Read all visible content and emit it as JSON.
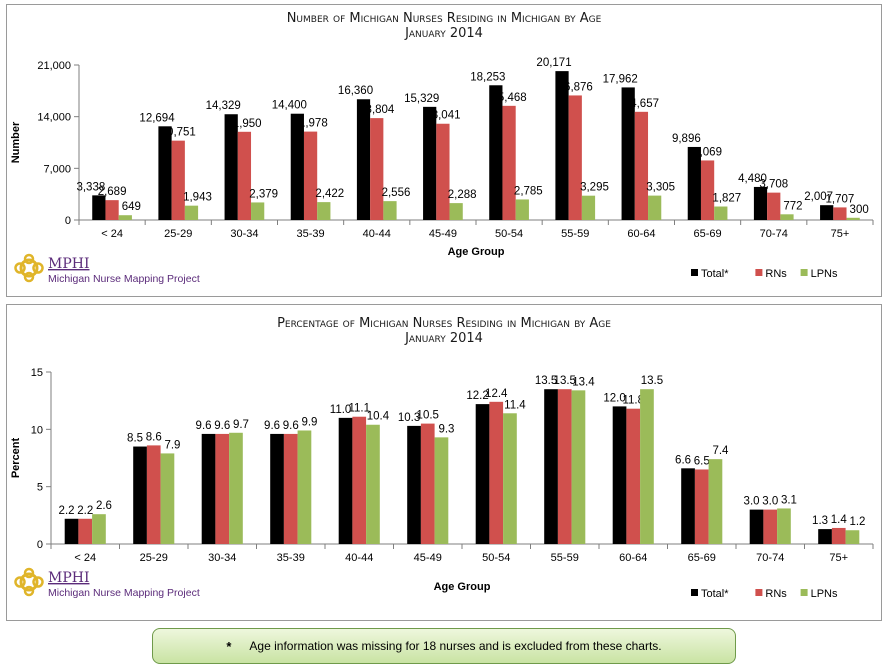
{
  "chart_data": [
    {
      "type": "bar",
      "title": "Number of Michigan Nurses Residing in Michigan by Age",
      "subtitle": "January 2014",
      "xlabel": "Age Group",
      "ylabel": "Number",
      "ylim": [
        0,
        21000
      ],
      "yticks": [
        "0",
        "7,000",
        "14,000",
        "21,000"
      ],
      "ytick_values": [
        0,
        7000,
        14000,
        21000
      ],
      "categories": [
        "< 24",
        "25-29",
        "30-34",
        "35-39",
        "40-44",
        "45-49",
        "50-54",
        "55-59",
        "60-64",
        "65-69",
        "70-74",
        "75+"
      ],
      "series": [
        {
          "name": "Total*",
          "color": "#000000",
          "values": [
            3338,
            12694,
            14329,
            14400,
            16360,
            15329,
            18253,
            20171,
            17962,
            9896,
            4480,
            2007
          ],
          "labels": [
            "3,338",
            "12,694",
            "14,329",
            "14,400",
            "16,360",
            "15,329",
            "18,253",
            "20,171",
            "17,962",
            "9,896",
            "4,480",
            "2,007"
          ]
        },
        {
          "name": "RNs",
          "color": "#d0504d",
          "values": [
            2689,
            10751,
            11950,
            11978,
            13804,
            13041,
            15468,
            16876,
            14657,
            8069,
            3708,
            1707
          ],
          "labels": [
            "2,689",
            "10,751",
            "11,950",
            "11,978",
            "13,804",
            "13,041",
            "15,468",
            "16,876",
            "14,657",
            "8,069",
            "3,708",
            "1,707"
          ]
        },
        {
          "name": "LPNs",
          "color": "#9bbb59",
          "values": [
            649,
            1943,
            2379,
            2422,
            2556,
            2288,
            2785,
            3295,
            3305,
            1827,
            772,
            300
          ],
          "labels": [
            "649",
            "1,943",
            "2,379",
            "2,422",
            "2,556",
            "2,288",
            "2,785",
            "3,295",
            "3,305",
            "1,827",
            "772",
            "300"
          ]
        }
      ],
      "grid": false,
      "legend_position": "bottom-right"
    },
    {
      "type": "bar",
      "title": "Percentage of Michigan Nurses Residing in Michigan by Age",
      "subtitle": "January 2014",
      "xlabel": "Age Group",
      "ylabel": "Percent",
      "ylim": [
        0,
        15
      ],
      "yticks": [
        "0",
        "5",
        "10",
        "15"
      ],
      "ytick_values": [
        0,
        5,
        10,
        15
      ],
      "categories": [
        "< 24",
        "25-29",
        "30-34",
        "35-39",
        "40-44",
        "45-49",
        "50-54",
        "55-59",
        "60-64",
        "65-69",
        "70-74",
        "75+"
      ],
      "series": [
        {
          "name": "Total*",
          "color": "#000000",
          "values": [
            2.2,
            8.5,
            9.6,
            9.6,
            11.0,
            10.3,
            12.2,
            13.5,
            12.0,
            6.6,
            3.0,
            1.3
          ],
          "labels": [
            "2.2",
            "8.5",
            "9.6",
            "9.6",
            "11.0",
            "10.3",
            "12.2",
            "13.5",
            "12.0",
            "6.6",
            "3.0",
            "1.3"
          ]
        },
        {
          "name": "RNs",
          "color": "#d0504d",
          "values": [
            2.2,
            8.6,
            9.6,
            9.6,
            11.1,
            10.5,
            12.4,
            13.5,
            11.8,
            6.5,
            3.0,
            1.4
          ],
          "labels": [
            "2.2",
            "8.6",
            "9.6",
            "9.6",
            "11.1",
            "10.5",
            "12.4",
            "13.5",
            "11.8",
            "6.5",
            "3.0",
            "1.4"
          ]
        },
        {
          "name": "LPNs",
          "color": "#9bbb59",
          "values": [
            2.6,
            7.9,
            9.7,
            9.9,
            10.4,
            9.3,
            11.4,
            13.4,
            13.5,
            7.4,
            3.1,
            1.2
          ],
          "labels": [
            "2.6",
            "7.9",
            "9.7",
            "9.9",
            "10.4",
            "9.3",
            "11.4",
            "13.4",
            "13.5",
            "7.4",
            "3.1",
            "1.2"
          ]
        }
      ],
      "grid": false,
      "legend_position": "bottom-right"
    }
  ],
  "logo": {
    "brand": "MPHI",
    "caption": "Michigan Nurse Mapping Project",
    "color": "#5b2b7a",
    "icon": "mphi-knot-logo"
  },
  "footnote": {
    "marker": "*",
    "text": "Age information was missing for 18 nurses and is excluded from these charts."
  }
}
